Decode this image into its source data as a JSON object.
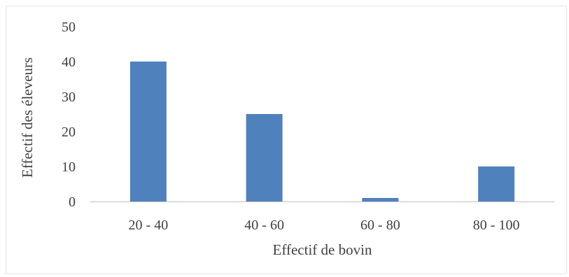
{
  "chart_data": {
    "type": "bar",
    "categories": [
      "20 - 40",
      "40 - 60",
      "60 - 80",
      "80 - 100"
    ],
    "values": [
      40,
      25,
      1,
      10
    ],
    "xlabel": "Effectif de bovin",
    "ylabel": "Effectif des éleveurs",
    "ylim": [
      0,
      50
    ],
    "yticks": [
      0,
      10,
      20,
      30,
      40,
      50
    ],
    "grid": false,
    "legend": "none",
    "bar_color": "#4F81BD",
    "axis_color": "#BFBFBF",
    "text_color": "#404040"
  }
}
